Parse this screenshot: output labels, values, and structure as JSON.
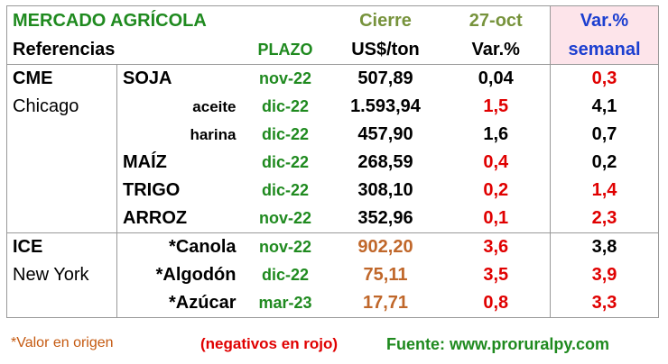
{
  "header": {
    "title": "MERCADO AGRÍCOLA",
    "close": "Cierre",
    "date": "27-oct",
    "var_weekly_top": "Var.%",
    "references": "Referencias",
    "term": "PLAZO",
    "unit": "US$/ton",
    "var": "Var.%",
    "var_weekly_bottom": "semanal"
  },
  "rows": [
    {
      "exchange": "CME",
      "product": "SOJA",
      "term": "nov-22",
      "price": "507,89",
      "var": "0,04",
      "var_weekly": "0,3"
    },
    {
      "exchange": "Chicago",
      "product": "aceite",
      "term": "dic-22",
      "price": "1.593,94",
      "var": "1,5",
      "var_weekly": "4,1"
    },
    {
      "product": "harina",
      "term": "dic-22",
      "price": "457,90",
      "var": "1,6",
      "var_weekly": "0,7"
    },
    {
      "product": "MAÍZ",
      "term": "dic-22",
      "price": "268,59",
      "var": "0,4",
      "var_weekly": "0,2"
    },
    {
      "product": "TRIGO",
      "term": "dic-22",
      "price": "308,10",
      "var": "0,2",
      "var_weekly": "1,4"
    },
    {
      "product": "ARROZ",
      "term": "nov-22",
      "price": "352,96",
      "var": "0,1",
      "var_weekly": "2,3"
    },
    {
      "exchange": "ICE",
      "product": "*Canola",
      "term": "nov-22",
      "price": "902,20",
      "var": "3,6",
      "var_weekly": "3,8"
    },
    {
      "exchange": "New York",
      "product": "*Algodón",
      "term": "dic-22",
      "price": "75,11",
      "var": "3,5",
      "var_weekly": "3,9"
    },
    {
      "product": "*Azúcar",
      "term": "mar-23",
      "price": "17,71",
      "var": "0,8",
      "var_weekly": "3,3"
    }
  ],
  "footer": {
    "note": "*Valor en origen",
    "negatives": "(negativos en rojo)",
    "source": "Fuente: www.proruralpy.com"
  }
}
